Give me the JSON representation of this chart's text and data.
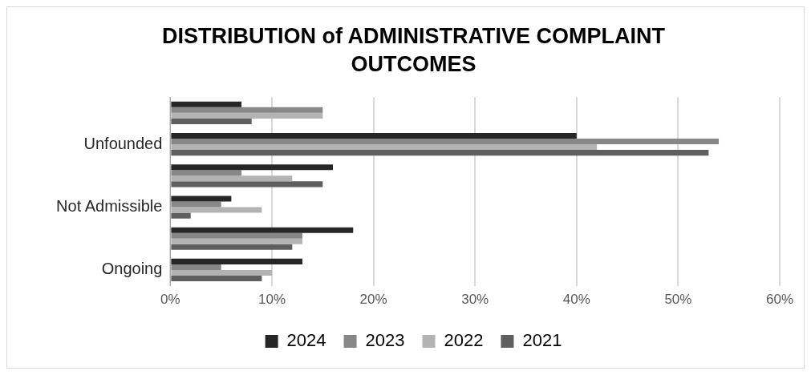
{
  "chart_data": {
    "type": "bar",
    "orientation": "horizontal",
    "title": "DISTRIBUTION of ADMINISTRATIVE COMPLAINT OUTCOMES",
    "categories": [
      null,
      "Unfounded",
      null,
      "Not Admissible",
      null,
      "Ongoing"
    ],
    "series": [
      {
        "name": "2024",
        "color": "#262626",
        "values": [
          7,
          40,
          16,
          6,
          18,
          13
        ]
      },
      {
        "name": "2023",
        "color": "#878787",
        "values": [
          15,
          54,
          7,
          5,
          13,
          5
        ]
      },
      {
        "name": "2022",
        "color": "#b3b3b3",
        "values": [
          15,
          42,
          12,
          9,
          13,
          10
        ]
      },
      {
        "name": "2021",
        "color": "#5f5f5f",
        "values": [
          8,
          53,
          15,
          2,
          12,
          9
        ]
      }
    ],
    "xlim": [
      0,
      60
    ],
    "xticks": [
      {
        "value": 0,
        "label": "0%"
      },
      {
        "value": 10,
        "label": "10%"
      },
      {
        "value": 20,
        "label": "20%"
      },
      {
        "value": 30,
        "label": "30%"
      },
      {
        "value": 40,
        "label": "40%"
      },
      {
        "value": 50,
        "label": "50%"
      },
      {
        "value": 60,
        "label": "60%"
      }
    ],
    "grid": "x",
    "legend": "bottom"
  }
}
